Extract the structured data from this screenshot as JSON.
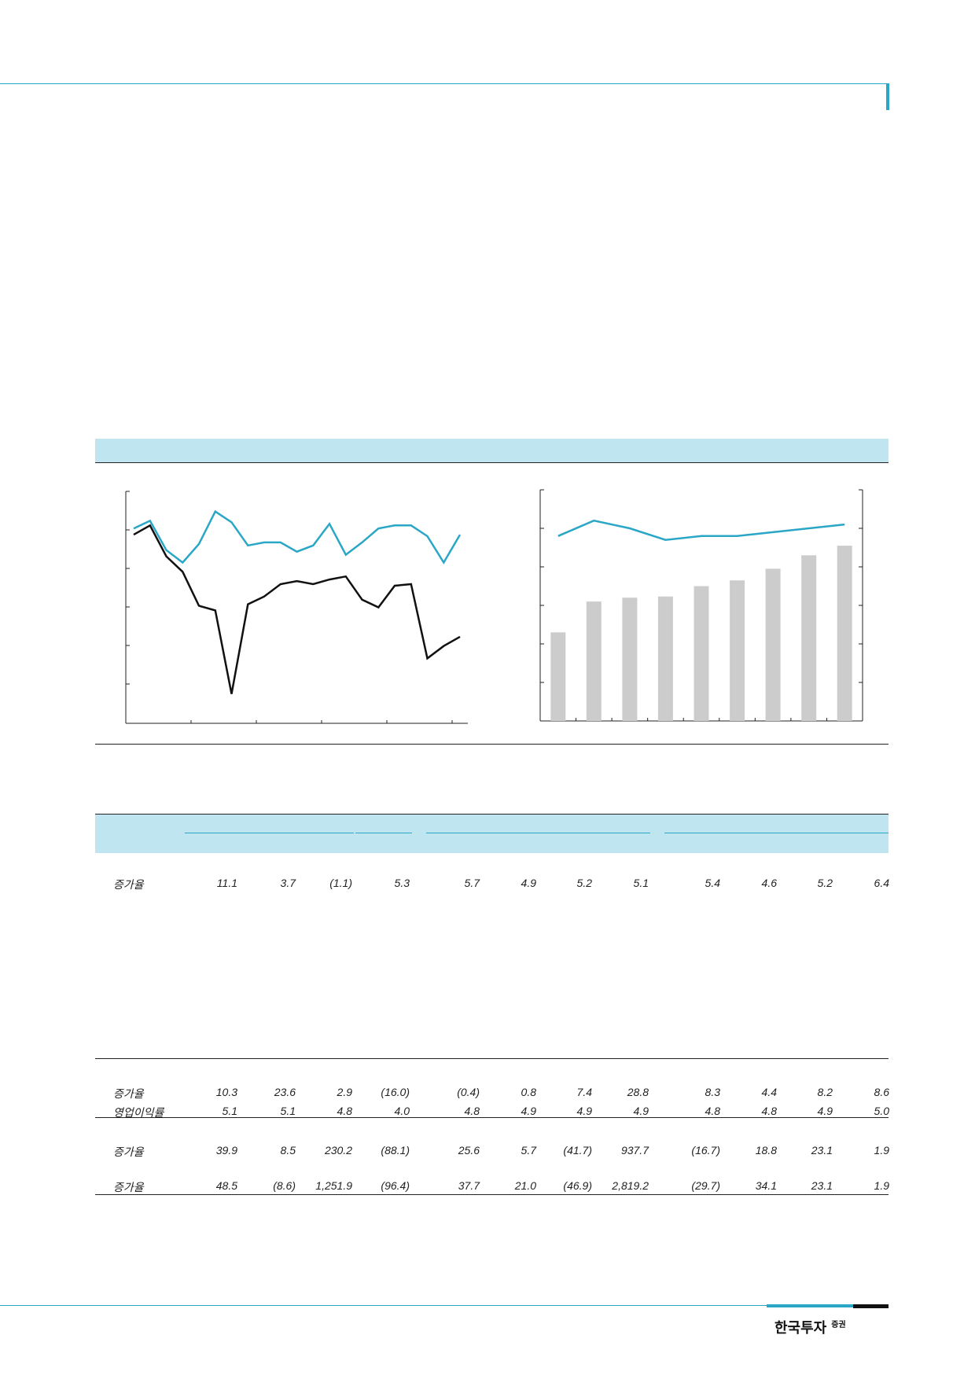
{
  "colors": {
    "accent": "#2aa7c6",
    "band": "#bfe6f0",
    "bar": "#cccccc",
    "line_dark": "#111111"
  },
  "brand": {
    "name": "한국투자",
    "suffix": "증권"
  },
  "chart_data": [
    {
      "type": "line",
      "series": [
        {
          "values": [
            86,
            91,
            72,
            64,
            76,
            97,
            90,
            75,
            77,
            77,
            71,
            75,
            89,
            69,
            77,
            86,
            88,
            88,
            81,
            64,
            82
          ]
        },
        {
          "values": [
            82,
            88,
            68,
            58,
            36,
            33,
            -21,
            37,
            42,
            50,
            52,
            50,
            53,
            55,
            40,
            35,
            49,
            50,
            2,
            10,
            16
          ]
        }
      ],
      "ylim": [
        -40,
        110
      ]
    },
    {
      "type": "bar",
      "bar_series": {
        "values": [
          23,
          31,
          32,
          32.3,
          35,
          36.5,
          39.5,
          43,
          45.5
        ]
      },
      "line_series": {
        "values": [
          48,
          52,
          50,
          47,
          48,
          48,
          49,
          50,
          51
        ]
      },
      "ylim": [
        0,
        60
      ]
    }
  ],
  "table": {
    "rows": [
      {
        "label": "증가율",
        "values": [
          "11.1",
          "3.7",
          "(1.1)",
          "5.3",
          "5.7",
          "4.9",
          "5.2",
          "5.1",
          "5.4",
          "4.6",
          "5.2",
          "6.4"
        ]
      },
      {
        "label": "증가율",
        "values": [
          "10.3",
          "23.6",
          "2.9",
          "(16.0)",
          "(0.4)",
          "0.8",
          "7.4",
          "28.8",
          "8.3",
          "4.4",
          "8.2",
          "8.6"
        ]
      },
      {
        "label": "영업이익률",
        "values": [
          "5.1",
          "5.1",
          "4.8",
          "4.0",
          "4.8",
          "4.9",
          "4.9",
          "4.9",
          "4.8",
          "4.8",
          "4.9",
          "5.0"
        ]
      },
      {
        "label": "증가율",
        "values": [
          "39.9",
          "8.5",
          "230.2",
          "(88.1)",
          "25.6",
          "5.7",
          "(41.7)",
          "937.7",
          "(16.7)",
          "18.8",
          "23.1",
          "1.9"
        ]
      },
      {
        "label": "증가율",
        "values": [
          "48.5",
          "(8.6)",
          "1,251.9",
          "(96.4)",
          "37.7",
          "21.0",
          "(46.9)",
          "2,819.2",
          "(29.7)",
          "34.1",
          "23.1",
          "1.9"
        ]
      }
    ]
  }
}
